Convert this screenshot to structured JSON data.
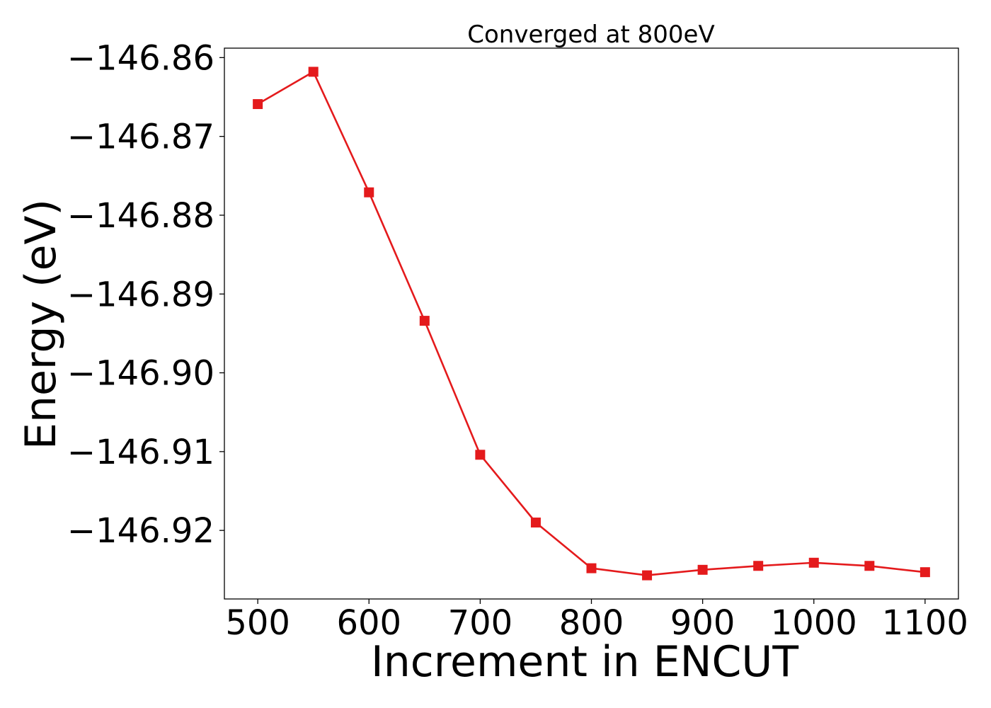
{
  "chart_data": {
    "type": "line",
    "title": "Converged at 800eV",
    "xlabel": "Increment in ENCUT",
    "ylabel": "Energy (eV)",
    "xlim": [
      470,
      1130
    ],
    "ylim": [
      -146.9287,
      -146.8588
    ],
    "x_ticks": [
      500,
      600,
      700,
      800,
      900,
      1000,
      1100
    ],
    "x_tick_labels": [
      "500",
      "600",
      "700",
      "800",
      "900",
      "1000",
      "1100"
    ],
    "y_ticks": [
      -146.86,
      -146.87,
      -146.88,
      -146.89,
      -146.9,
      -146.91,
      -146.92
    ],
    "y_tick_labels": [
      "−146.86",
      "−146.87",
      "−146.88",
      "−146.89",
      "−146.90",
      "−146.91",
      "−146.92"
    ],
    "grid": false,
    "series": [
      {
        "name": "Energy",
        "color": "#e41a1c",
        "marker": "square",
        "x": [
          500,
          550,
          600,
          650,
          700,
          750,
          800,
          850,
          900,
          950,
          1000,
          1050,
          1100
        ],
        "values": [
          -146.8659,
          -146.8618,
          -146.8771,
          -146.8934,
          -146.9104,
          -146.919,
          -146.9248,
          -146.9257,
          -146.925,
          -146.9245,
          -146.9241,
          -146.9245,
          -146.9253
        ]
      }
    ]
  }
}
